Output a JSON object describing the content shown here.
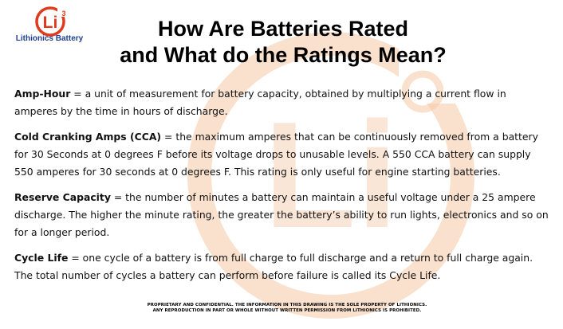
{
  "brand": {
    "logo_mark": "Li",
    "logo_superscript": "3",
    "name": "Lithionics Battery",
    "accent_color": "#e03a1e",
    "name_color": "#1f3f8f",
    "watermark_color": "#f6c9a5"
  },
  "title": {
    "line1": "How Are Batteries Rated",
    "line2": "and What do the Ratings Mean?"
  },
  "definitions": [
    {
      "term": "Amp-Hour",
      "text": " = a unit of measurement for battery capacity, obtained by multiplying a current flow in amperes by the time in hours of discharge."
    },
    {
      "term": "Cold Cranking Amps (CCA)",
      "text": " = the maximum amperes that can be continuously removed from a battery for 30 Seconds at 0 degrees F before its voltage drops to unusable levels. A 550 CCA battery can supply 550 amperes for 30 seconds at 0 degrees F. This rating is only useful for engine starting batteries."
    },
    {
      "term": "Reserve Capacity",
      "text": " = the number of minutes a battery can maintain a useful voltage under a 25 ampere discharge. The higher the minute rating, the greater the battery’s ability to run lights, electronics and so on for a longer period."
    },
    {
      "term": "Cycle Life",
      "text": " = one cycle of a battery is from full charge to full discharge and a return to full charge again. The total number of cycles a battery can perform before failure is called its Cycle Life."
    }
  ],
  "footer": {
    "line1": "PROPRIETARY AND CONFIDENTIAL. THE INFORMATION IN THIS DRAWING IS THE SOLE PROPERTY OF LITHIONICS.",
    "line2": "ANY REPRODUCTION IN PART OR WHOLE WITHOUT WRITTEN PERMISSION FROM LITHIONICS IS PROHIBITED."
  }
}
